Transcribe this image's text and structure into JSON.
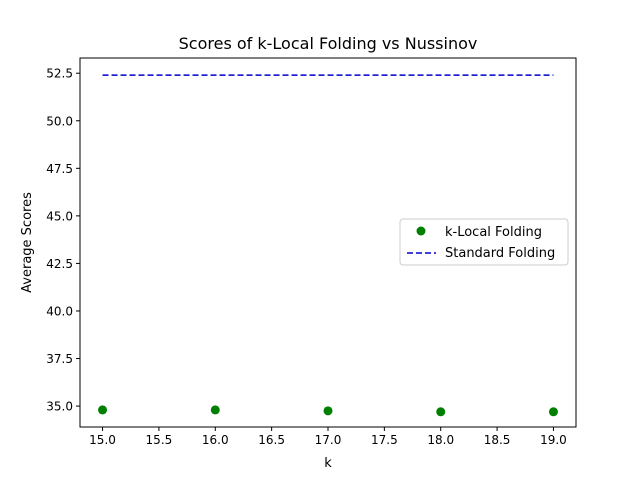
{
  "chart_data": {
    "type": "scatter",
    "title": "Scores of k-Local Folding vs Nussinov",
    "xlabel": "k",
    "ylabel": "Average Scores",
    "xlim": [
      14.8,
      19.2
    ],
    "ylim": [
      33.9,
      53.3
    ],
    "xticks": [
      15.0,
      15.5,
      16.0,
      16.5,
      17.0,
      17.5,
      18.0,
      18.5,
      19.0
    ],
    "xtick_labels": [
      "15.0",
      "15.5",
      "16.0",
      "16.5",
      "17.0",
      "17.5",
      "18.0",
      "18.5",
      "19.0"
    ],
    "yticks": [
      35.0,
      37.5,
      40.0,
      42.5,
      45.0,
      47.5,
      50.0,
      52.5
    ],
    "ytick_labels": [
      "35.0",
      "37.5",
      "40.0",
      "42.5",
      "45.0",
      "47.5",
      "50.0",
      "52.5"
    ],
    "grid": false,
    "legend_position": "center-right",
    "series": [
      {
        "name": "k-Local Folding",
        "kind": "scatter",
        "color": "#008000",
        "x": [
          15,
          16,
          17,
          18,
          19
        ],
        "y": [
          34.8,
          34.8,
          34.75,
          34.7,
          34.7
        ]
      },
      {
        "name": "Standard Folding",
        "kind": "line",
        "linestyle": "dashed",
        "color": "#0000cc",
        "x": [
          15,
          19
        ],
        "y": [
          52.4,
          52.4
        ]
      }
    ]
  }
}
